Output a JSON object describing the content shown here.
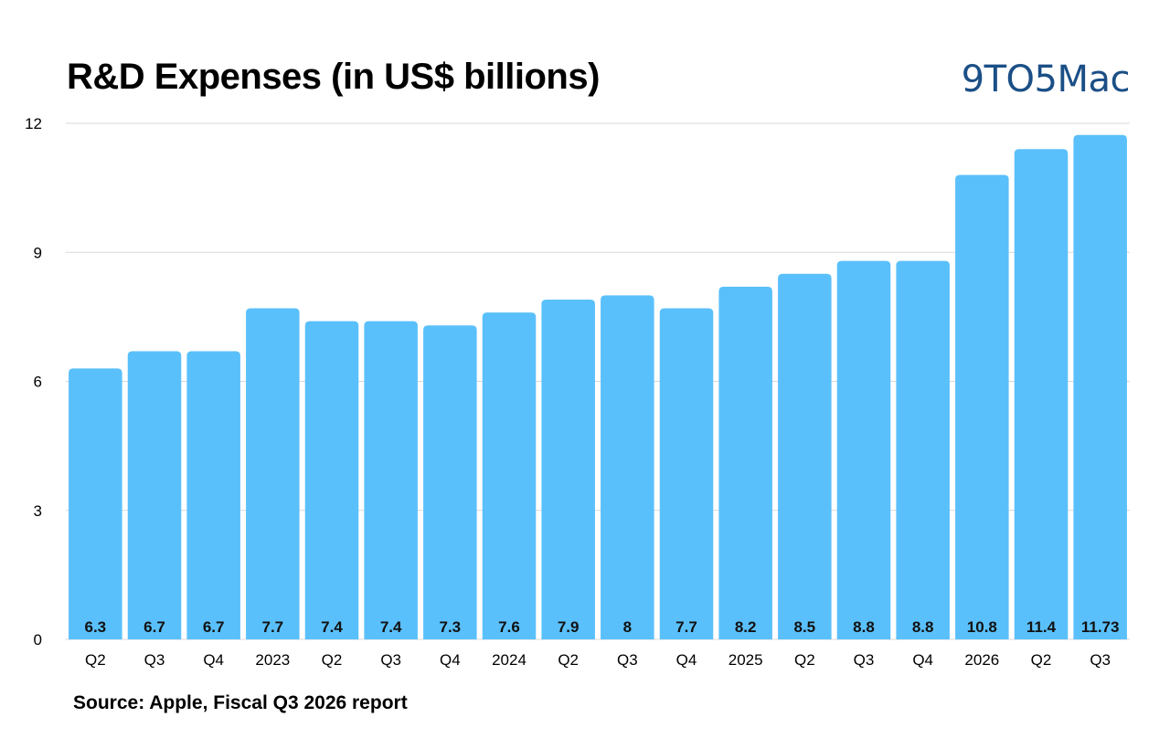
{
  "title": "R&D Expenses (in US$ billions)",
  "brand": "9TO5Mac",
  "source": "Source: Apple, Fiscal Q3 2026 report",
  "colors": {
    "bar": "#5ac0fb",
    "grid": "#d9d9d9",
    "brand": "#1b4f86"
  },
  "chart_data": {
    "type": "bar",
    "title": "R&D Expenses (in US$ billions)",
    "xlabel": "",
    "ylabel": "",
    "ylim": [
      0,
      12
    ],
    "yticks": [
      0,
      3,
      6,
      9,
      12
    ],
    "grid": true,
    "categories": [
      "Q2",
      "Q3",
      "Q4",
      "2023",
      "Q2",
      "Q3",
      "Q4",
      "2024",
      "Q2",
      "Q3",
      "Q4",
      "2025",
      "Q2",
      "Q3",
      "Q4",
      "2026",
      "Q2",
      "Q3"
    ],
    "values": [
      6.3,
      6.7,
      6.7,
      7.7,
      7.4,
      7.4,
      7.3,
      7.6,
      7.9,
      8,
      7.7,
      8.2,
      8.5,
      8.8,
      8.8,
      10.8,
      11.4,
      11.73
    ],
    "value_labels": [
      "6.3",
      "6.7",
      "6.7",
      "7.7",
      "7.4",
      "7.4",
      "7.3",
      "7.6",
      "7.9",
      "8",
      "7.7",
      "8.2",
      "8.5",
      "8.8",
      "8.8",
      "10.8",
      "11.4",
      "11.73"
    ]
  }
}
